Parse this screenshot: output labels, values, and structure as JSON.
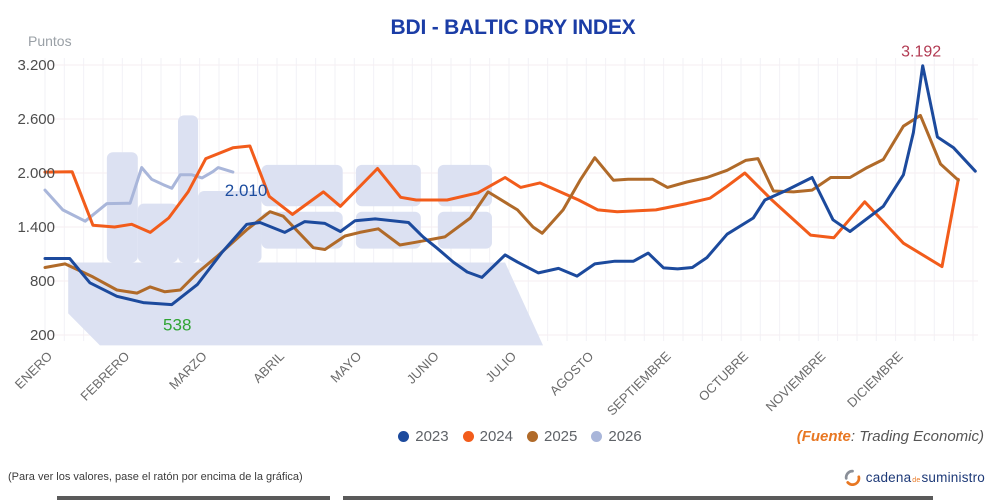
{
  "ui": {
    "title": "BDI - BALTIC DRY INDEX",
    "footnote": "(Para ver los valores, pase el ratón por encima de la gráfica)",
    "source": {
      "fuente": "(Fuente",
      "rest": ": Trading Economic)"
    },
    "logo": {
      "cadena": "cadena",
      "de": "de",
      "suministro": "suministro"
    }
  },
  "chart_data": {
    "type": "line",
    "title": "BDI - BALTIC DRY INDEX",
    "ylabel": "Puntos",
    "xlabel": "",
    "ylim": [
      200,
      3200
    ],
    "grid": true,
    "legend_position": "bottom-center",
    "y_ticks": [
      {
        "label": "3.200",
        "value": 3200
      },
      {
        "label": "2.600",
        "value": 2600
      },
      {
        "label": "2.000",
        "value": 2000
      },
      {
        "label": "1.400",
        "value": 1400
      },
      {
        "label": "800",
        "value": 800
      },
      {
        "label": "200",
        "value": 200
      }
    ],
    "x_months": [
      "ENERO",
      "FEBRERO",
      "MARZO",
      "ABRIL",
      "MAYO",
      "JUNIO",
      "JULIO",
      "AGOSTO",
      "SEPTIEMBRE",
      "OCTUBRE",
      "NOVIEMBRE",
      "DICIEMBRE"
    ],
    "series": [
      {
        "name": "2026",
        "color": "#a9b6da",
        "points": [
          [
            0,
            1810
          ],
          [
            0.23,
            1590
          ],
          [
            0.52,
            1465
          ],
          [
            0.8,
            1660
          ],
          [
            1.1,
            1665
          ],
          [
            1.25,
            2060
          ],
          [
            1.38,
            1930
          ],
          [
            1.53,
            1870
          ],
          [
            1.64,
            1830
          ],
          [
            1.75,
            1980
          ],
          [
            1.9,
            1980
          ],
          [
            2.03,
            1945
          ],
          [
            2.17,
            2015
          ],
          [
            2.24,
            2060
          ],
          [
            2.43,
            2010
          ]
        ]
      },
      {
        "name": "2024",
        "color": "#f25c1b",
        "points": [
          [
            0,
            2010
          ],
          [
            0.35,
            2015
          ],
          [
            0.62,
            1420
          ],
          [
            0.9,
            1400
          ],
          [
            1.12,
            1430
          ],
          [
            1.36,
            1340
          ],
          [
            1.6,
            1500
          ],
          [
            1.85,
            1790
          ],
          [
            2.08,
            2160
          ],
          [
            2.43,
            2280
          ],
          [
            2.65,
            2300
          ],
          [
            2.9,
            1740
          ],
          [
            3.2,
            1540
          ],
          [
            3.6,
            1790
          ],
          [
            3.82,
            1630
          ],
          [
            4.3,
            2050
          ],
          [
            4.6,
            1730
          ],
          [
            4.8,
            1700
          ],
          [
            5.2,
            1700
          ],
          [
            5.6,
            1780
          ],
          [
            5.95,
            1950
          ],
          [
            6.15,
            1840
          ],
          [
            6.4,
            1890
          ],
          [
            6.9,
            1700
          ],
          [
            7.15,
            1590
          ],
          [
            7.4,
            1570
          ],
          [
            7.9,
            1590
          ],
          [
            8.3,
            1660
          ],
          [
            8.6,
            1720
          ],
          [
            8.8,
            1840
          ],
          [
            9.05,
            2000
          ],
          [
            9.4,
            1700
          ],
          [
            9.9,
            1310
          ],
          [
            10.2,
            1280
          ],
          [
            10.6,
            1680
          ],
          [
            11.1,
            1220
          ],
          [
            11.6,
            960
          ],
          [
            11.81,
            1930
          ]
        ]
      },
      {
        "name": "2025",
        "color": "#b06a29",
        "points": [
          [
            0,
            950
          ],
          [
            0.26,
            990
          ],
          [
            0.62,
            845
          ],
          [
            0.93,
            700
          ],
          [
            1.19,
            665
          ],
          [
            1.36,
            735
          ],
          [
            1.55,
            680
          ],
          [
            1.75,
            700
          ],
          [
            1.97,
            890
          ],
          [
            2.22,
            1070
          ],
          [
            2.61,
            1370
          ],
          [
            2.91,
            1570
          ],
          [
            3.08,
            1520
          ],
          [
            3.47,
            1170
          ],
          [
            3.62,
            1150
          ],
          [
            3.88,
            1300
          ],
          [
            4.07,
            1340
          ],
          [
            4.31,
            1380
          ],
          [
            4.59,
            1200
          ],
          [
            4.79,
            1230
          ],
          [
            5.17,
            1290
          ],
          [
            5.5,
            1500
          ],
          [
            5.73,
            1790
          ],
          [
            6.11,
            1590
          ],
          [
            6.31,
            1400
          ],
          [
            6.43,
            1330
          ],
          [
            6.7,
            1590
          ],
          [
            6.92,
            1920
          ],
          [
            7.11,
            2170
          ],
          [
            7.35,
            1920
          ],
          [
            7.54,
            1930
          ],
          [
            7.86,
            1930
          ],
          [
            8.05,
            1840
          ],
          [
            8.3,
            1900
          ],
          [
            8.56,
            1950
          ],
          [
            8.82,
            2030
          ],
          [
            9.06,
            2140
          ],
          [
            9.22,
            2160
          ],
          [
            9.42,
            1800
          ],
          [
            9.68,
            1790
          ],
          [
            9.92,
            1810
          ],
          [
            10.16,
            1950
          ],
          [
            10.41,
            1950
          ],
          [
            10.63,
            2060
          ],
          [
            10.84,
            2150
          ],
          [
            11.1,
            2520
          ],
          [
            11.32,
            2640
          ],
          [
            11.58,
            2100
          ],
          [
            11.81,
            1920
          ]
        ]
      },
      {
        "name": "2023",
        "color": "#1c4a9d",
        "points": [
          [
            0,
            1050
          ],
          [
            0.32,
            1050
          ],
          [
            0.58,
            780
          ],
          [
            0.93,
            630
          ],
          [
            1.27,
            560
          ],
          [
            1.64,
            538
          ],
          [
            1.97,
            760
          ],
          [
            2.29,
            1120
          ],
          [
            2.61,
            1430
          ],
          [
            2.78,
            1450
          ],
          [
            3.1,
            1340
          ],
          [
            3.36,
            1460
          ],
          [
            3.62,
            1440
          ],
          [
            3.82,
            1350
          ],
          [
            4.01,
            1470
          ],
          [
            4.27,
            1490
          ],
          [
            4.7,
            1450
          ],
          [
            4.89,
            1290
          ],
          [
            5.07,
            1165
          ],
          [
            5.28,
            1010
          ],
          [
            5.46,
            900
          ],
          [
            5.65,
            840
          ],
          [
            5.95,
            1090
          ],
          [
            6.11,
            1010
          ],
          [
            6.38,
            890
          ],
          [
            6.64,
            940
          ],
          [
            6.88,
            855
          ],
          [
            7.11,
            990
          ],
          [
            7.37,
            1020
          ],
          [
            7.61,
            1020
          ],
          [
            7.8,
            1110
          ],
          [
            8.0,
            945
          ],
          [
            8.18,
            935
          ],
          [
            8.37,
            950
          ],
          [
            8.56,
            1060
          ],
          [
            8.82,
            1320
          ],
          [
            9.16,
            1500
          ],
          [
            9.31,
            1700
          ],
          [
            9.57,
            1800
          ],
          [
            9.92,
            1950
          ],
          [
            10.19,
            1480
          ],
          [
            10.41,
            1350
          ],
          [
            10.84,
            1630
          ],
          [
            11.1,
            1980
          ],
          [
            11.23,
            2450
          ],
          [
            11.35,
            3192
          ],
          [
            11.54,
            2400
          ],
          [
            11.75,
            2280
          ],
          [
            12.03,
            2020
          ]
        ]
      }
    ],
    "legend_order": [
      "2023",
      "2024",
      "2025",
      "2026"
    ],
    "annotations": [
      {
        "text": "2.010",
        "color": "#1d4d9f",
        "f": 2.6,
        "v": 2010,
        "dy": 24,
        "size": 17
      },
      {
        "text": "538",
        "color": "#2fa433",
        "f": 1.71,
        "v": 538,
        "dy": 26,
        "size": 17
      },
      {
        "text": "3.192",
        "color": "#b23a52",
        "f": 11.33,
        "v": 3192,
        "dy": -9,
        "size": 16
      }
    ],
    "watermark": {
      "color": "#dce1f2",
      "shapes": [
        {
          "type": "polygon",
          "points": [
            [
              0.3,
              1005
            ],
            [
              5.95,
              1005
            ],
            [
              6.44,
              85
            ],
            [
              0.71,
              85
            ],
            [
              0.3,
              440
            ]
          ]
        },
        {
          "type": "rect",
          "f0": 0.8,
          "f1": 1.2,
          "v0": 2230,
          "v1": 1005
        },
        {
          "type": "rect",
          "f0": 1.2,
          "f1": 1.72,
          "v0": 1660,
          "v1": 1005
        },
        {
          "type": "rect",
          "f0": 1.72,
          "f1": 1.98,
          "v0": 2640,
          "v1": 1005
        },
        {
          "type": "rect",
          "f0": 1.98,
          "f1": 2.8,
          "v0": 1800,
          "v1": 1005
        },
        {
          "type": "rect",
          "f0": 2.8,
          "f1": 3.85,
          "v0": 2090,
          "v1": 1630
        },
        {
          "type": "rect",
          "f0": 2.8,
          "f1": 3.85,
          "v0": 1570,
          "v1": 1160
        },
        {
          "type": "rect",
          "f0": 4.02,
          "f1": 4.86,
          "v0": 2090,
          "v1": 1630
        },
        {
          "type": "rect",
          "f0": 4.02,
          "f1": 4.86,
          "v0": 1570,
          "v1": 1160
        },
        {
          "type": "rect",
          "f0": 5.08,
          "f1": 5.78,
          "v0": 2090,
          "v1": 1630
        },
        {
          "type": "rect",
          "f0": 5.08,
          "f1": 5.78,
          "v0": 1570,
          "v1": 1160
        }
      ]
    }
  }
}
